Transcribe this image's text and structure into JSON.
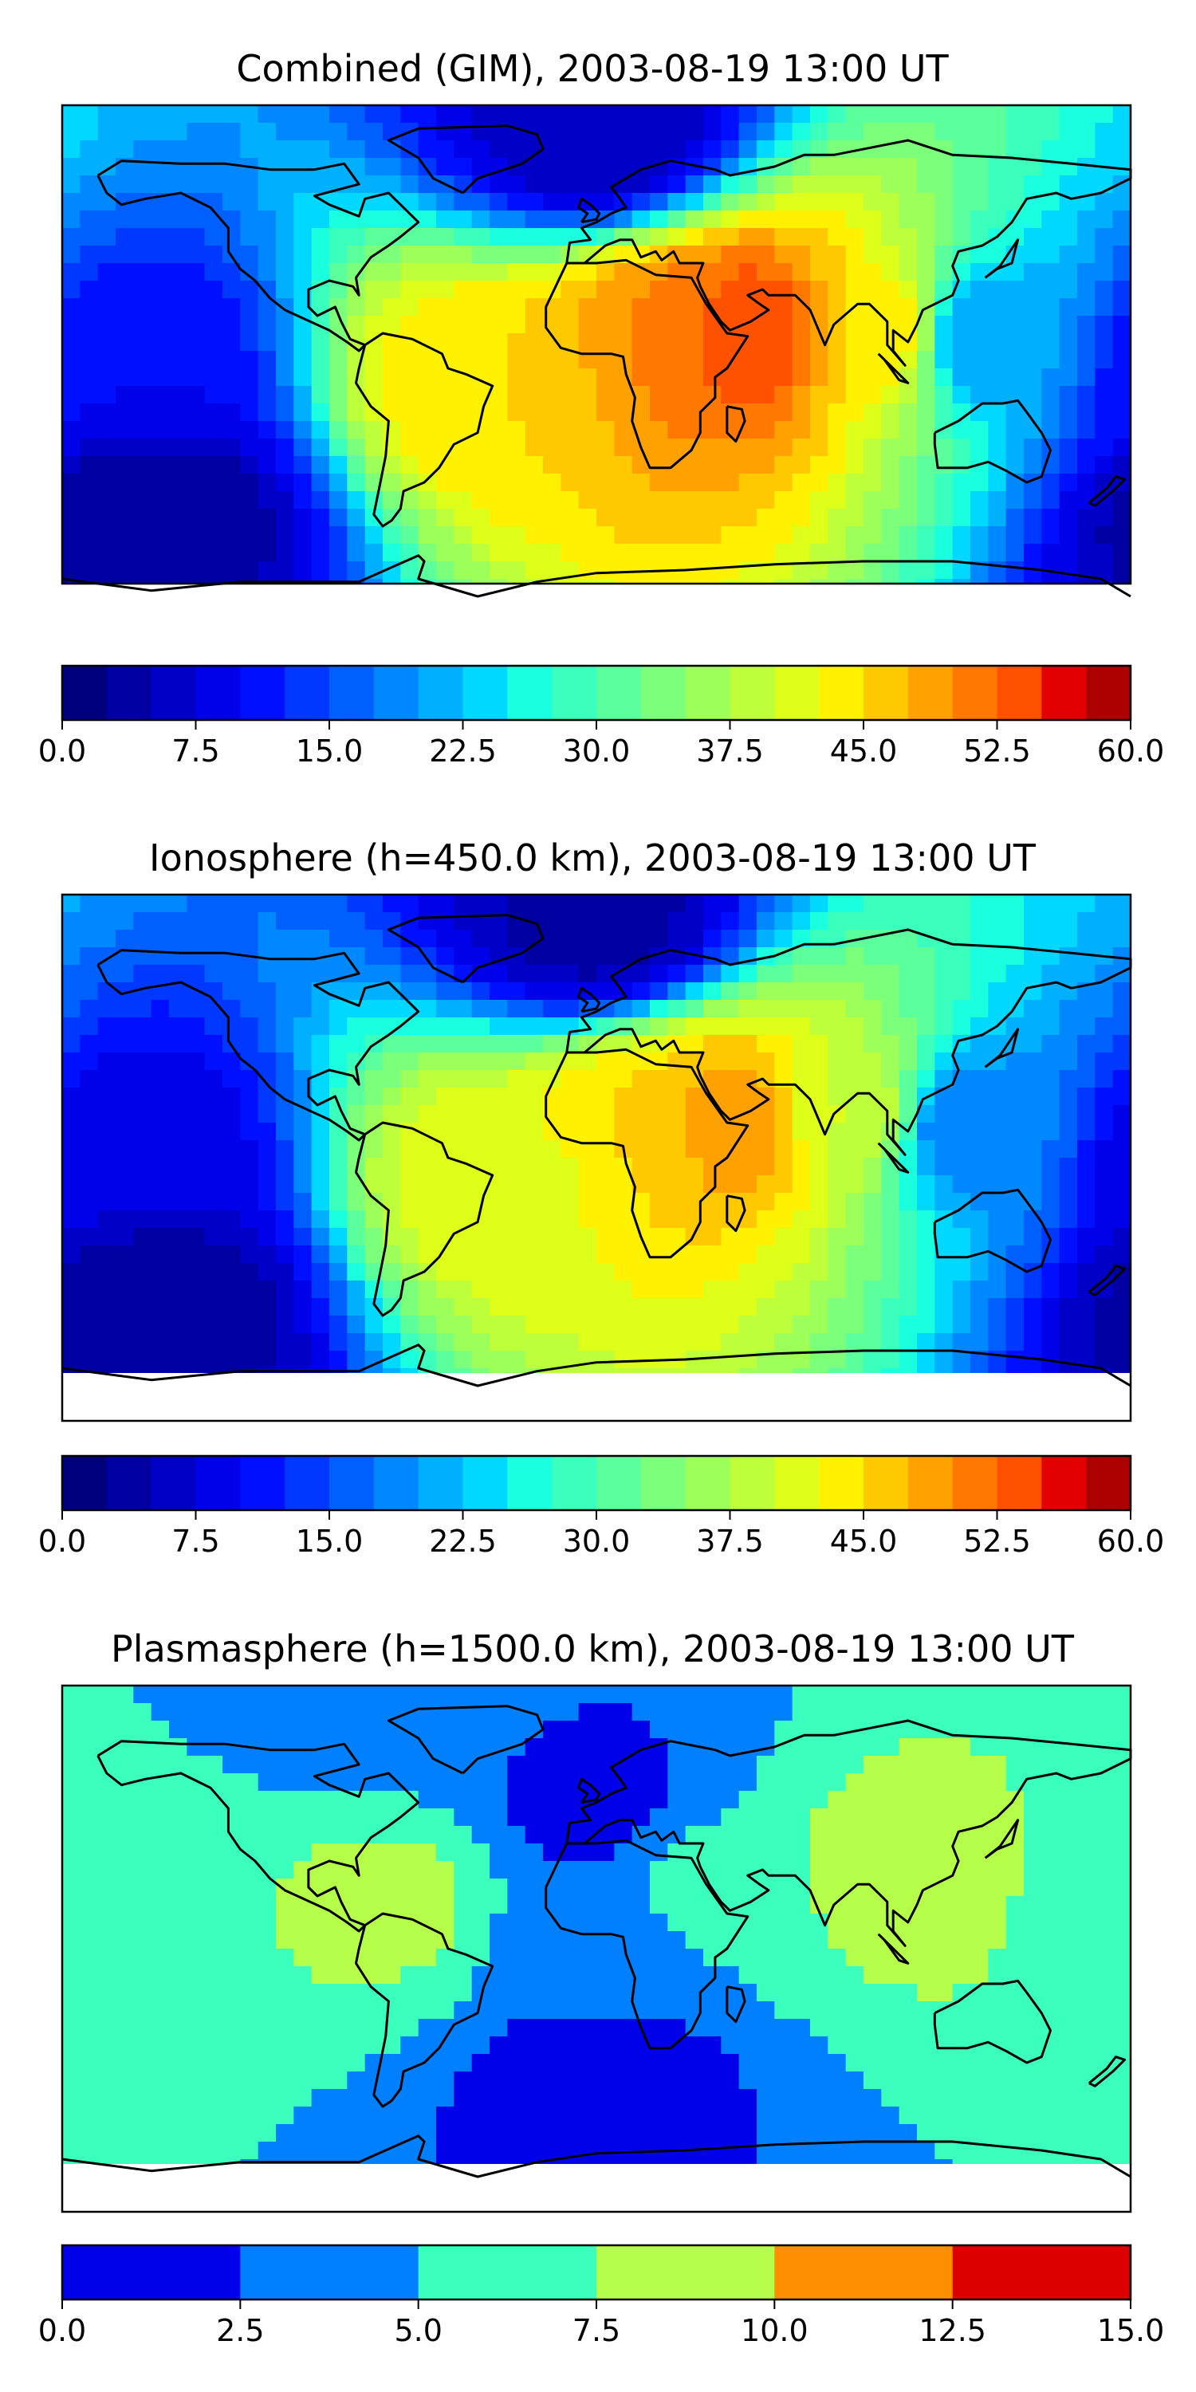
{
  "chart_data": [
    {
      "type": "heatmap",
      "title": "Combined (GIM), 2003-08-19 13:00 UT",
      "colorbar": {
        "range": [
          0,
          60
        ],
        "step": 2.5,
        "tick_labels": [
          "0.0",
          "7.5",
          "15.0",
          "22.5",
          "30.0",
          "37.5",
          "45.0",
          "52.5",
          "60.0"
        ]
      },
      "features": [
        {
          "lon": 50,
          "lat": 12,
          "value": 55
        },
        {
          "lon": 25,
          "lat": 12,
          "value": 50
        },
        {
          "lon": -35,
          "lat": -5,
          "value": 45
        },
        {
          "lon": 95,
          "lat": 12,
          "value": 45
        },
        {
          "lon": 130,
          "lat": 10,
          "value": 20
        },
        {
          "lon": -160,
          "lat": 0,
          "value": 10
        },
        {
          "lon": -150,
          "lat": -50,
          "value": 3
        },
        {
          "lon": 0,
          "lat": 80,
          "value": 5
        }
      ]
    },
    {
      "type": "heatmap",
      "title": "Ionosphere  (h=450.0 km), 2003-08-19 13:00 UT",
      "colorbar": {
        "range": [
          0,
          60
        ],
        "step": 2.5,
        "tick_labels": [
          "0.0",
          "7.5",
          "15.0",
          "22.5",
          "30.0",
          "37.5",
          "45.0",
          "52.5",
          "60.0"
        ]
      },
      "features": [
        {
          "lon": 45,
          "lat": 12,
          "value": 50
        },
        {
          "lon": 20,
          "lat": 12,
          "value": 45
        },
        {
          "lon": -30,
          "lat": -8,
          "value": 42
        },
        {
          "lon": 85,
          "lat": 15,
          "value": 40
        },
        {
          "lon": 125,
          "lat": 10,
          "value": 18
        },
        {
          "lon": -160,
          "lat": 0,
          "value": 8
        },
        {
          "lon": -150,
          "lat": -50,
          "value": 3
        },
        {
          "lon": 0,
          "lat": 80,
          "value": 4
        }
      ]
    },
    {
      "type": "heatmap",
      "title": "Plasmasphere (h=1500.0 km), 2003-08-19 13:00 UT",
      "colorbar": {
        "range": [
          0,
          15
        ],
        "step": 2.5,
        "tick_labels": [
          "0.0",
          "2.5",
          "5.0",
          "7.5",
          "10.0",
          "12.5",
          "15.0"
        ]
      },
      "features": [
        {
          "lon": 100,
          "lat": 25,
          "value": 8.5
        },
        {
          "lon": -70,
          "lat": 15,
          "value": 8
        },
        {
          "lon": 40,
          "lat": 20,
          "value": 6
        },
        {
          "lon": -170,
          "lat": 15,
          "value": 6
        },
        {
          "lon": 0,
          "lat": 0,
          "value": 3
        },
        {
          "lon": 0,
          "lat": -45,
          "value": 1.5
        },
        {
          "lon": 0,
          "lat": 50,
          "value": 2
        },
        {
          "lon": -70,
          "lat": 85,
          "value": 3.5
        }
      ]
    }
  ],
  "colors": {
    "jet24": [
      "#00007f",
      "#0000a2",
      "#0000c6",
      "#0000e9",
      "#0010ff",
      "#0038ff",
      "#0060ff",
      "#0088ff",
      "#00b0ff",
      "#00d8ff",
      "#1affdd",
      "#3affbd",
      "#5bff9c",
      "#7cff7b",
      "#9cff5a",
      "#bdff3a",
      "#ddff19",
      "#fff100",
      "#ffc900",
      "#ffa100",
      "#ff7900",
      "#ff5200",
      "#e30000",
      "#ad0000"
    ],
    "jet6": [
      "#0000e9",
      "#0080ff",
      "#3affbd",
      "#b5ff4a",
      "#ff8e00",
      "#dd0000"
    ]
  }
}
